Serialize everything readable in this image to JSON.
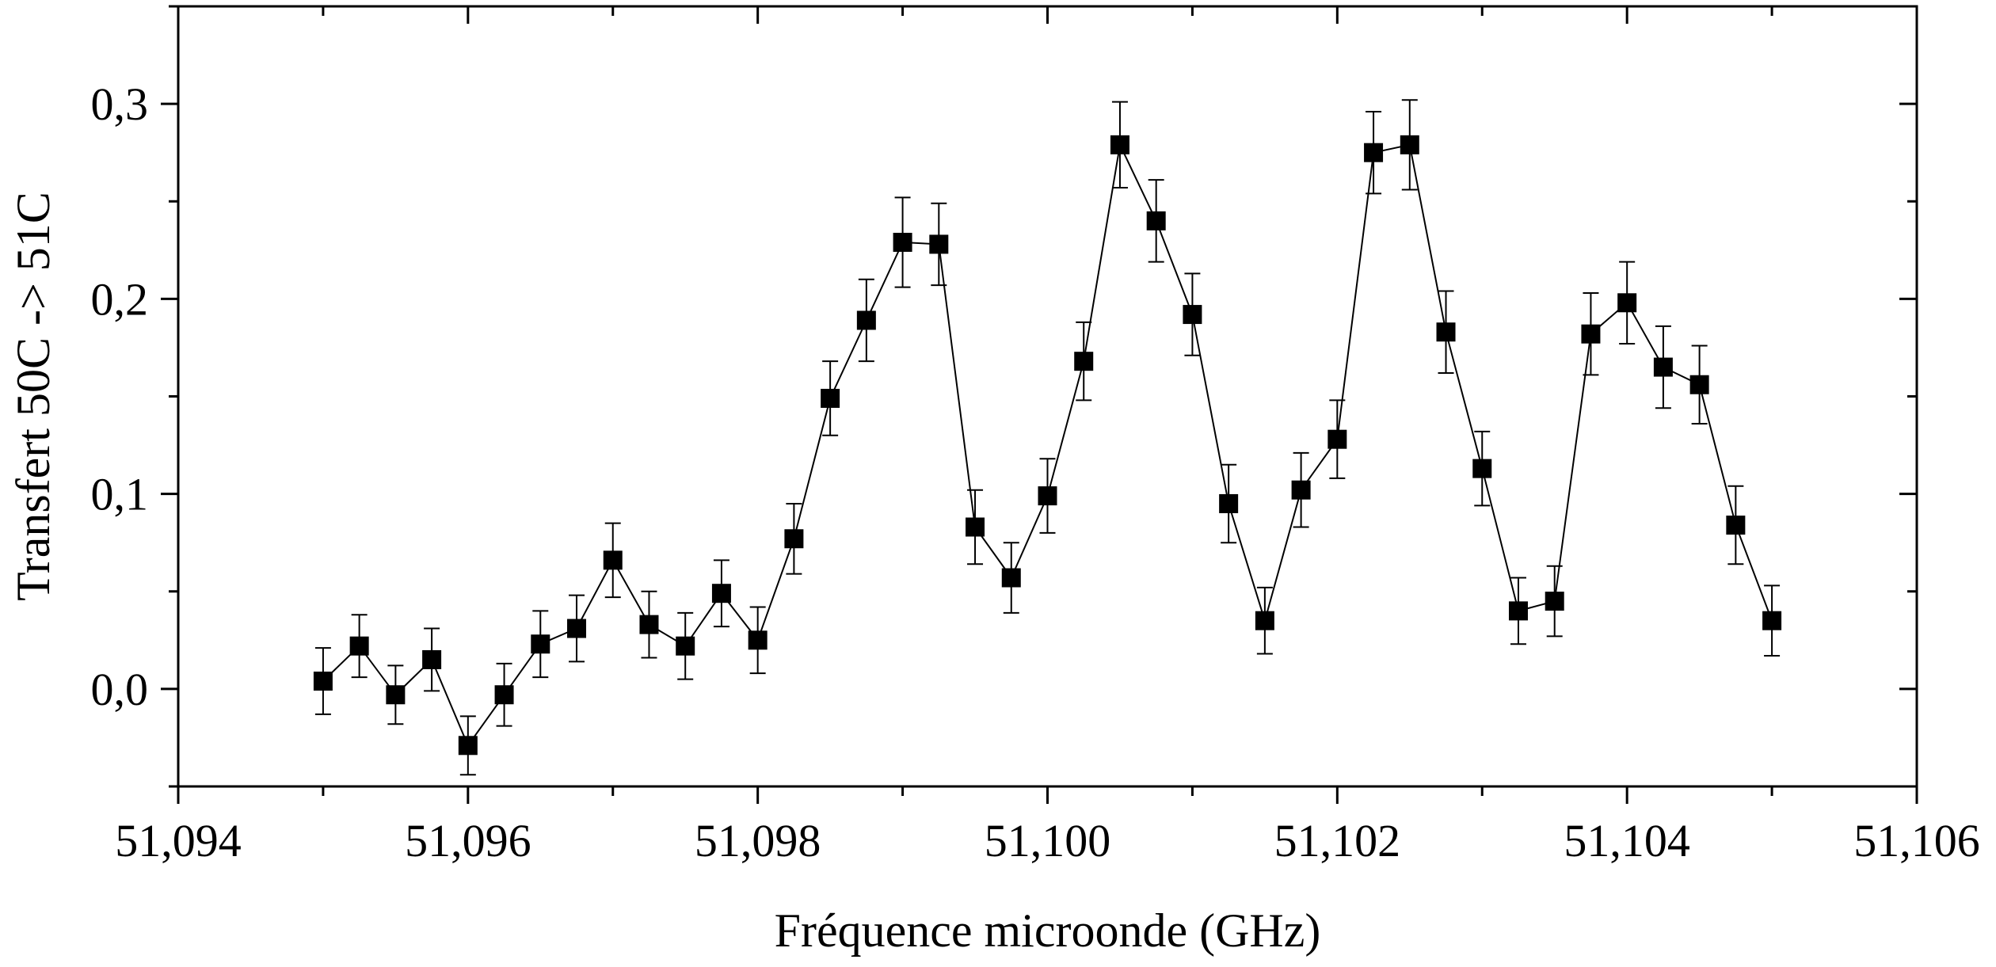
{
  "chart_data": {
    "type": "scatter",
    "xlabel": "Fréquence microonde (GHz)",
    "ylabel": "Transfert 50C -> 51C",
    "xlim": [
      51.094,
      51.106
    ],
    "ylim": [
      -0.05,
      0.35
    ],
    "xticks": [
      51.094,
      51.096,
      51.098,
      51.1,
      51.102,
      51.104,
      51.106
    ],
    "xtick_labels": [
      "51,094",
      "51,096",
      "51,098",
      "51,100",
      "51,102",
      "51,104",
      "51,106"
    ],
    "yticks": [
      0.0,
      0.1,
      0.2,
      0.3
    ],
    "ytick_labels": [
      "0,0",
      "0,1",
      "0,2",
      "0,3"
    ],
    "grid": false,
    "marker": "square",
    "connected": true,
    "error_bars": true,
    "color": "#000000",
    "series": [
      {
        "x": [
          51.095,
          51.09525,
          51.0955,
          51.09575,
          51.096,
          51.09625,
          51.0965,
          51.09675,
          51.097,
          51.09725,
          51.0975,
          51.09775,
          51.098,
          51.09825,
          51.0985,
          51.09875,
          51.099,
          51.09925,
          51.0995,
          51.09975,
          51.1,
          51.10025,
          51.1005,
          51.10075,
          51.101,
          51.10125,
          51.1015,
          51.10175,
          51.102,
          51.10225,
          51.1025,
          51.10275,
          51.103,
          51.10325,
          51.1035,
          51.10375,
          51.104,
          51.10425,
          51.1045,
          51.10475,
          51.105
        ],
        "y": [
          0.004,
          0.022,
          -0.003,
          0.015,
          -0.029,
          -0.003,
          0.023,
          0.031,
          0.066,
          0.033,
          0.022,
          0.049,
          0.025,
          0.077,
          0.149,
          0.189,
          0.229,
          0.228,
          0.083,
          0.057,
          0.099,
          0.168,
          0.279,
          0.24,
          0.192,
          0.095,
          0.035,
          0.102,
          0.128,
          0.275,
          0.279,
          0.183,
          0.113,
          0.04,
          0.045,
          0.182,
          0.198,
          0.165,
          0.156,
          0.084,
          0.035
        ],
        "error": [
          0.017,
          0.016,
          0.015,
          0.016,
          0.015,
          0.016,
          0.017,
          0.017,
          0.019,
          0.017,
          0.017,
          0.017,
          0.017,
          0.018,
          0.019,
          0.021,
          0.023,
          0.021,
          0.019,
          0.018,
          0.019,
          0.02,
          0.022,
          0.021,
          0.021,
          0.02,
          0.017,
          0.019,
          0.02,
          0.021,
          0.023,
          0.021,
          0.019,
          0.017,
          0.018,
          0.021,
          0.021,
          0.021,
          0.02,
          0.02,
          0.018
        ]
      }
    ]
  }
}
